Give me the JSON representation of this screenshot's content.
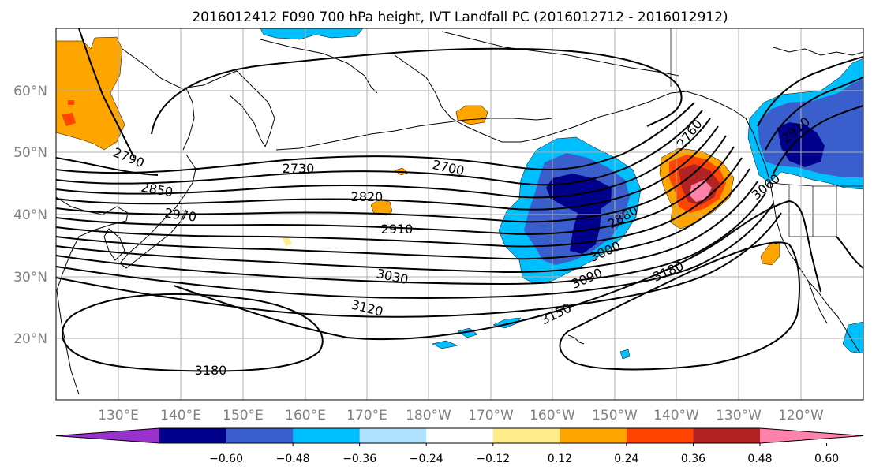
{
  "title": "2016012412 F090 700 hPa height, IVT Landfall PC (2016012712 - 2016012912)",
  "map": {
    "lon_labels": [
      "130°E",
      "140°E",
      "150°E",
      "160°E",
      "170°E",
      "180°W",
      "170°W",
      "160°W",
      "150°W",
      "140°W",
      "130°W",
      "120°W"
    ],
    "lat_labels": [
      "60°N",
      "50°N",
      "40°N",
      "30°N",
      "20°N"
    ],
    "gridlines": true
  },
  "height_contours": {
    "units": "700 hPa height",
    "labels": [
      "2790",
      "2850",
      "2970",
      "2730",
      "2700",
      "2820",
      "2910",
      "3030",
      "3120",
      "3180",
      "2760",
      "2880",
      "3000",
      "3090",
      "3150",
      "3180",
      "3060",
      "2910"
    ]
  },
  "colorbar": {
    "ticks": [
      "−0.60",
      "−0.48",
      "−0.36",
      "−0.24",
      "−0.12",
      "0.12",
      "0.24",
      "0.36",
      "0.48",
      "0.60"
    ],
    "colors": [
      "#9932cc",
      "#00008b",
      "#3a5fcd",
      "#00bfff",
      "#b0e2ff",
      "#ffffff",
      "#ffec8b",
      "#ffa500",
      "#ff4500",
      "#b22222",
      "#ff82ab"
    ]
  },
  "fill_colors": {
    "dark_blue": "#00008b",
    "mid_blue": "#3a5fcd",
    "cyan": "#00bfff",
    "light_cyan": "#b0e2ff",
    "light_yellow": "#ffec8b",
    "orange": "#ffa500",
    "red_orange": "#ff4500",
    "dark_red": "#b22222",
    "pink": "#ff82ab"
  }
}
